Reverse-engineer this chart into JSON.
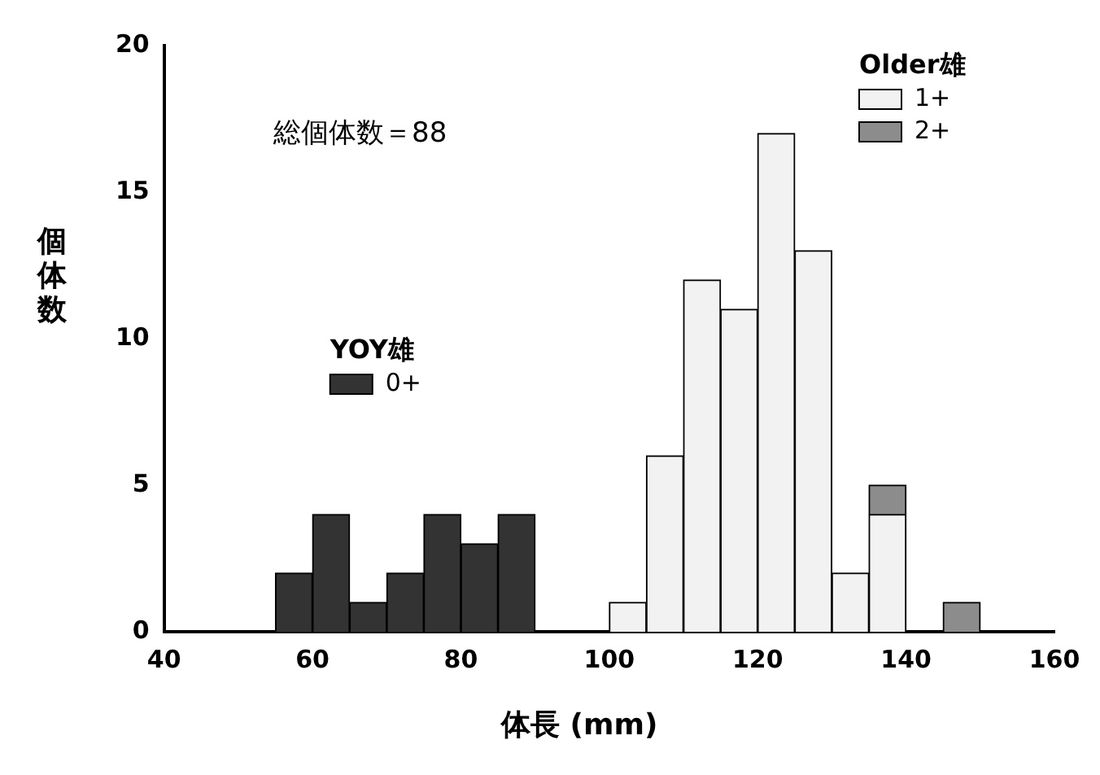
{
  "chart_data": {
    "type": "bar",
    "xlabel": "体長 (mm)",
    "ylabel": "個体数",
    "x": [
      57.5,
      62.5,
      67.5,
      72.5,
      77.5,
      82.5,
      87.5,
      92.5,
      97.5,
      102.5,
      107.5,
      112.5,
      117.5,
      122.5,
      127.5,
      132.5,
      137.5,
      142.5,
      147.5
    ],
    "series": [
      {
        "name": "0+",
        "color": "#333333",
        "values": [
          2,
          4,
          1,
          2,
          4,
          3,
          4,
          null,
          null,
          null,
          null,
          null,
          null,
          null,
          null,
          null,
          null,
          null,
          null
        ]
      },
      {
        "name": "1+",
        "color": "#f2f2f2",
        "values": [
          null,
          null,
          null,
          null,
          null,
          null,
          null,
          null,
          null,
          1,
          6,
          12,
          11,
          17,
          13,
          2,
          4,
          null,
          null
        ]
      },
      {
        "name": "2+",
        "color": "#8c8c8c",
        "values": [
          null,
          null,
          null,
          null,
          null,
          null,
          null,
          null,
          null,
          null,
          null,
          null,
          null,
          null,
          null,
          null,
          1,
          null,
          1
        ]
      }
    ],
    "stacked": true,
    "xlim": [
      40,
      160
    ],
    "xticks": [
      40,
      60,
      80,
      100,
      120,
      140,
      160
    ],
    "ylim": [
      0,
      20
    ],
    "yticks": [
      0,
      5,
      10,
      15,
      20
    ],
    "grid": false,
    "legend": "top right",
    "annotations": [
      "総個体数＝88",
      "YOY雄",
      "Older雄"
    ]
  }
}
